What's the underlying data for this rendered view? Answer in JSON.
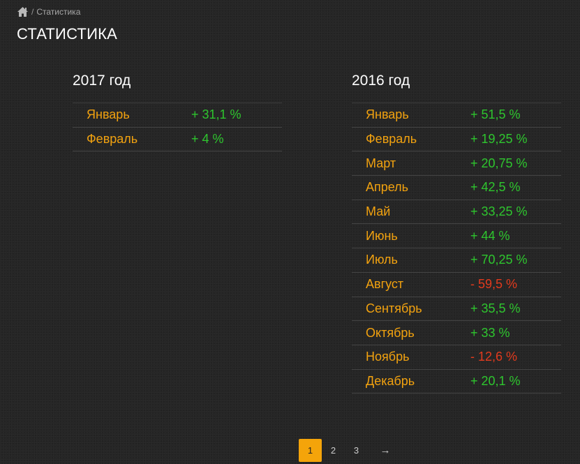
{
  "breadcrumb": {
    "separator": "/",
    "current": "Статистика"
  },
  "page_title": "СТАТИСТИКА",
  "colors": {
    "accent": "#f4a40a",
    "month": "#f2a20f",
    "positive": "#2ec62e",
    "negative": "#e23a1d",
    "background": "#262626"
  },
  "years": [
    {
      "title": "2017 год",
      "rows": [
        {
          "month": "Январь",
          "value": "+ 31,1 %",
          "positive": true
        },
        {
          "month": "Февраль",
          "value": "+ 4 %",
          "positive": true
        }
      ]
    },
    {
      "title": "2016 год",
      "rows": [
        {
          "month": "Январь",
          "value": "+ 51,5 %",
          "positive": true
        },
        {
          "month": "Февраль",
          "value": "+ 19,25 %",
          "positive": true
        },
        {
          "month": "Март",
          "value": "+ 20,75 %",
          "positive": true
        },
        {
          "month": "Апрель",
          "value": "+ 42,5 %",
          "positive": true
        },
        {
          "month": "Май",
          "value": "+ 33,25 %",
          "positive": true
        },
        {
          "month": "Июнь",
          "value": "+ 44 %",
          "positive": true
        },
        {
          "month": "Июль",
          "value": "+ 70,25 %",
          "positive": true
        },
        {
          "month": "Август",
          "value": "- 59,5 %",
          "positive": false
        },
        {
          "month": "Сентябрь",
          "value": "+ 35,5 %",
          "positive": true
        },
        {
          "month": "Октябрь",
          "value": "+ 33 %",
          "positive": true
        },
        {
          "month": "Ноябрь",
          "value": "- 12,6 %",
          "positive": false
        },
        {
          "month": "Декабрь",
          "value": "+ 20,1 %",
          "positive": true
        }
      ]
    }
  ],
  "pagination": {
    "pages": [
      "1",
      "2",
      "3"
    ],
    "current": "1",
    "next_label": "→"
  }
}
